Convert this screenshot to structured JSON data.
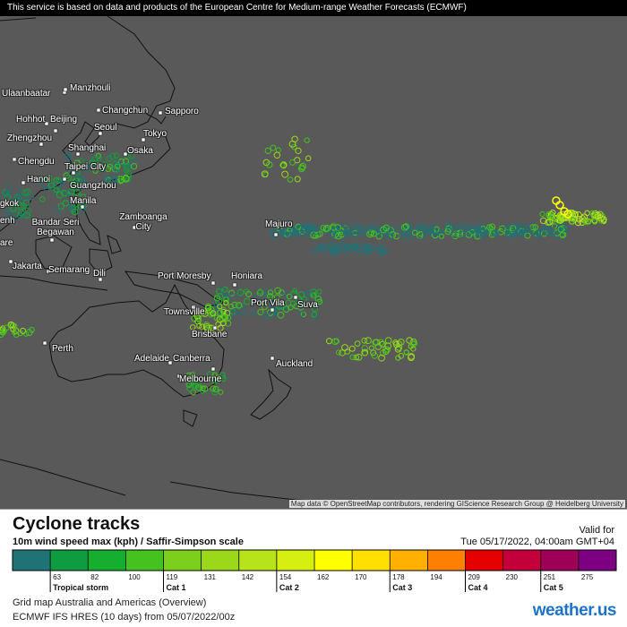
{
  "header": {
    "notice": "This service is based on data and products of the European Centre for Medium-range Weather Forecasts (ECMWF)"
  },
  "map": {
    "cities": [
      "Ulaanbaatar",
      "Manzhouli",
      "Changchun",
      "Sapporo",
      "Hohhot",
      "Beijing",
      "Seoul",
      "Tokyo",
      "Zhengzhou",
      "Shanghai",
      "Osaka",
      "Chengdu",
      "Taipei City",
      "Hanoi",
      "Guangzhou",
      "gkok",
      "Manila",
      "enh",
      "Zamboanga City",
      "Bandar Seri Begawan",
      "are",
      "Majuro",
      "Jakarta",
      "Semarang",
      "Dili",
      "Port Moresby",
      "Honiara",
      "Port Vila",
      "Suva",
      "Townsville",
      "Brisbane",
      "Perth",
      "Adelaide",
      "Canberra",
      "Auckland",
      "Melbourne"
    ],
    "attribution": "Map data © OpenStreetMap contributors, rendering GIScience Research Group @ Heidelberg University"
  },
  "legend": {
    "title": "Cyclone tracks",
    "subtitle": "10m wind speed max (kph) / Saffir-Simpson scale",
    "valid_label": "Valid for",
    "valid_time": "Tue 05/17/2022, 04:00am GMT+04",
    "colors": [
      "#1f7377",
      "#0f9c40",
      "#15ae2f",
      "#45c21f",
      "#7ccf1b",
      "#9cd81a",
      "#b6e31a",
      "#d6ee10",
      "#ffff00",
      "#ffe000",
      "#ffb000",
      "#ff7f00",
      "#e60000",
      "#c4003a",
      "#9e0058",
      "#7d0082"
    ],
    "ticks": [
      63,
      82,
      100,
      119,
      131,
      142,
      154,
      162,
      170,
      178,
      194,
      209,
      230,
      251,
      275
    ],
    "categories": [
      "Tropical storm",
      "Cat 1",
      "Cat 2",
      "Cat 3",
      "Cat 4",
      "Cat 5"
    ]
  },
  "footer": {
    "line1": "Grid map Australia and Americas (Overview)",
    "line2": "ECMWF IFS HRES (10 days)  from  05/07/2022/00z",
    "brand": "weather.us"
  }
}
